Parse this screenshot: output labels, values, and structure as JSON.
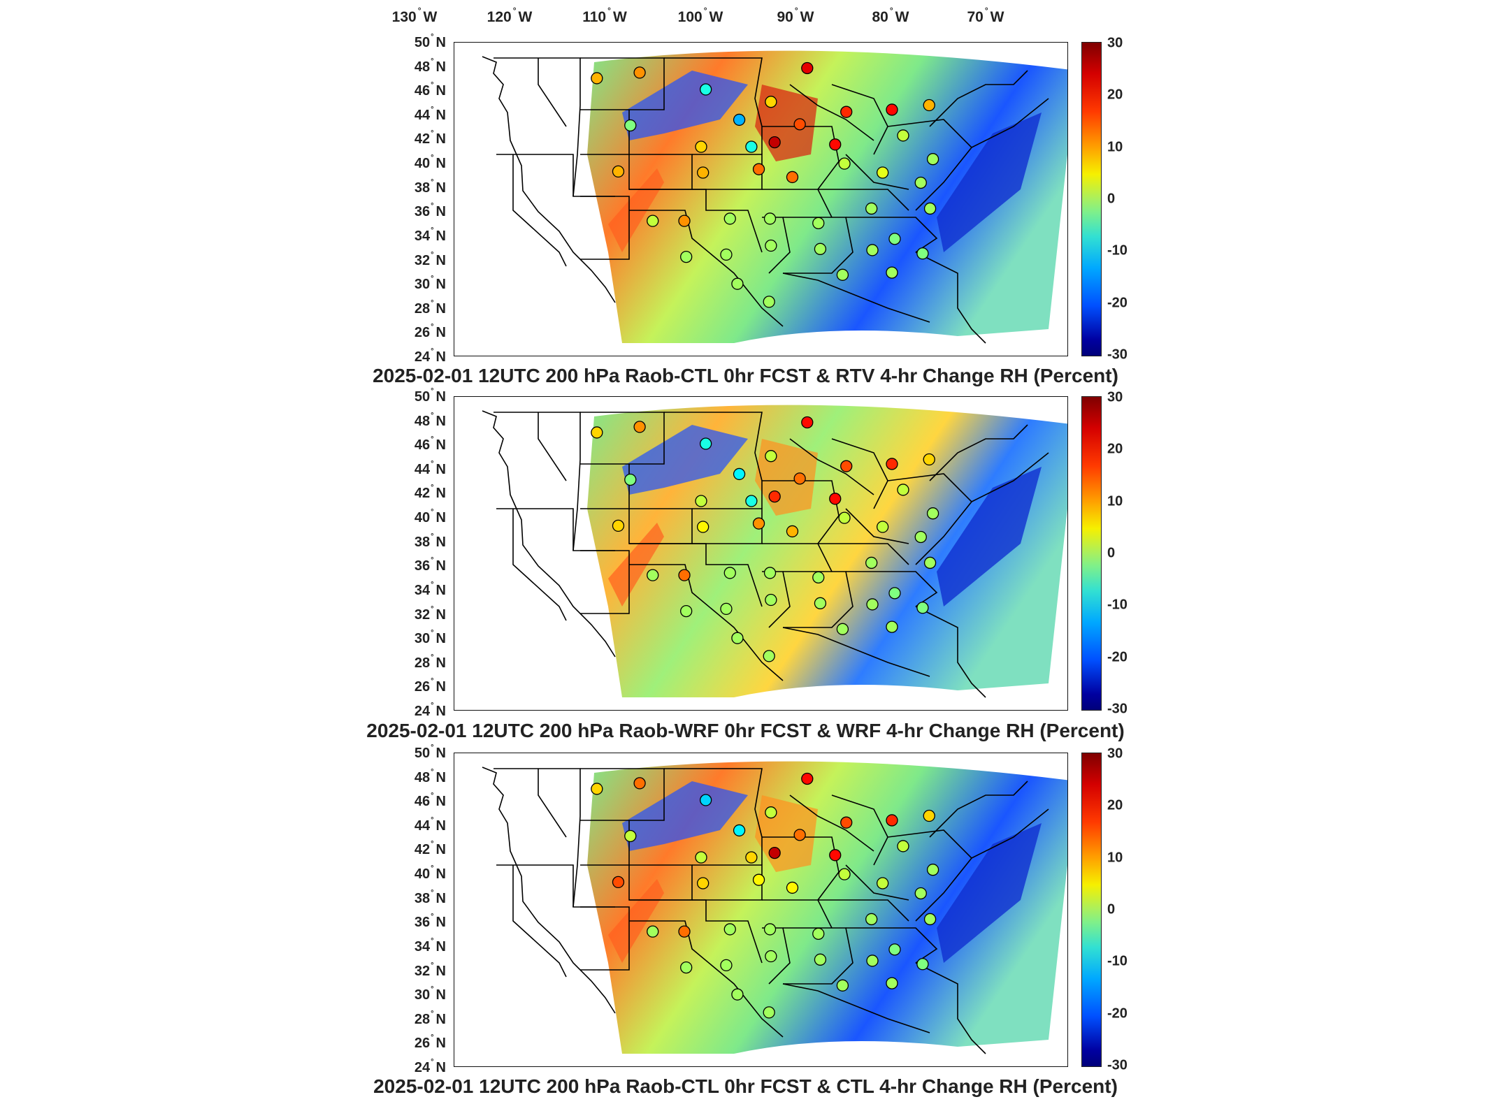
{
  "lon_ticks": [
    "130° W",
    "120° W",
    "110° W",
    "100° W",
    "90° W",
    "80° W",
    "70° W"
  ],
  "lon_labels": [
    {
      "deg": "130",
      "hemi": "W"
    },
    {
      "deg": "120",
      "hemi": "W"
    },
    {
      "deg": "110",
      "hemi": "W"
    },
    {
      "deg": "100",
      "hemi": "W"
    },
    {
      "deg": "90",
      "hemi": "W"
    },
    {
      "deg": "80",
      "hemi": "W"
    },
    {
      "deg": "70",
      "hemi": "W"
    }
  ],
  "lat_labels": [
    {
      "deg": "50",
      "hemi": "N"
    },
    {
      "deg": "48",
      "hemi": "N"
    },
    {
      "deg": "46",
      "hemi": "N"
    },
    {
      "deg": "44",
      "hemi": "N"
    },
    {
      "deg": "42",
      "hemi": "N"
    },
    {
      "deg": "40",
      "hemi": "N"
    },
    {
      "deg": "38",
      "hemi": "N"
    },
    {
      "deg": "36",
      "hemi": "N"
    },
    {
      "deg": "34",
      "hemi": "N"
    },
    {
      "deg": "32",
      "hemi": "N"
    },
    {
      "deg": "30",
      "hemi": "N"
    },
    {
      "deg": "28",
      "hemi": "N"
    },
    {
      "deg": "26",
      "hemi": "N"
    },
    {
      "deg": "24",
      "hemi": "N"
    }
  ],
  "colorbar": {
    "ticks": [
      "30",
      "20",
      "10",
      "0",
      "-10",
      "-20",
      "-30"
    ],
    "range": [
      -30,
      30
    ],
    "colormap": "jet",
    "colors": {
      "max": "#7f0000",
      "high": "#ff3a00",
      "mid_high": "#f6f000",
      "zero": "#7ff08a",
      "mid_low": "#00a8ff",
      "low": "#0000a0"
    }
  },
  "panels": [
    {
      "title": "2025-02-01 12UTC 200 hPa Raob-CTL 0hr FCST & RTV 4-hr Change RH (Percent)"
    },
    {
      "title": "2025-02-01 12UTC 200 hPa Raob-WRF 0hr FCST & WRF 4-hr Change RH (Percent)"
    },
    {
      "title": "2025-02-01 12UTC 200 hPa Raob-CTL 0hr FCST & CTL 4-hr Change RH (Percent)"
    }
  ],
  "stations": [
    {
      "lon": -116.0,
      "lat": 47.7,
      "v": [
        12,
        10,
        10
      ]
    },
    {
      "lon": -111.4,
      "lat": 48.2,
      "v": [
        14,
        14,
        16
      ]
    },
    {
      "lon": -104.3,
      "lat": 46.7,
      "v": [
        -6,
        -6,
        -10
      ]
    },
    {
      "lon": -100.7,
      "lat": 44.0,
      "v": [
        -12,
        -8,
        -8
      ]
    },
    {
      "lon": -97.3,
      "lat": 45.6,
      "v": [
        10,
        4,
        4
      ]
    },
    {
      "lon": -93.4,
      "lat": 48.6,
      "v": [
        24,
        22,
        22
      ]
    },
    {
      "lon": -89.2,
      "lat": 44.7,
      "v": [
        20,
        18,
        18
      ]
    },
    {
      "lon": -84.3,
      "lat": 44.9,
      "v": [
        22,
        20,
        20
      ]
    },
    {
      "lon": -80.3,
      "lat": 45.3,
      "v": [
        12,
        10,
        10
      ]
    },
    {
      "lon": -112.4,
      "lat": 43.5,
      "v": [
        0,
        0,
        4
      ]
    },
    {
      "lon": -104.8,
      "lat": 41.6,
      "v": [
        10,
        4,
        4
      ]
    },
    {
      "lon": -99.4,
      "lat": 41.6,
      "v": [
        -6,
        -6,
        10
      ]
    },
    {
      "lon": -96.9,
      "lat": 42.0,
      "v": [
        26,
        20,
        26
      ]
    },
    {
      "lon": -94.2,
      "lat": 43.6,
      "v": [
        18,
        16,
        16
      ]
    },
    {
      "lon": -90.4,
      "lat": 41.8,
      "v": [
        22,
        22,
        22
      ]
    },
    {
      "lon": -83.1,
      "lat": 42.6,
      "v": [
        4,
        4,
        4
      ]
    },
    {
      "lon": -79.9,
      "lat": 40.5,
      "v": [
        2,
        2,
        2
      ]
    },
    {
      "lon": -113.7,
      "lat": 39.4,
      "v": [
        12,
        10,
        18
      ]
    },
    {
      "lon": -104.6,
      "lat": 39.3,
      "v": [
        12,
        8,
        10
      ]
    },
    {
      "lon": -98.6,
      "lat": 39.6,
      "v": [
        16,
        14,
        8
      ]
    },
    {
      "lon": -95.0,
      "lat": 38.9,
      "v": [
        16,
        12,
        8
      ]
    },
    {
      "lon": -89.4,
      "lat": 40.1,
      "v": [
        4,
        4,
        4
      ]
    },
    {
      "lon": -85.3,
      "lat": 39.3,
      "v": [
        6,
        4,
        4
      ]
    },
    {
      "lon": -81.2,
      "lat": 38.4,
      "v": [
        2,
        2,
        2
      ]
    },
    {
      "lon": -110.0,
      "lat": 35.0,
      "v": [
        4,
        2,
        2
      ]
    },
    {
      "lon": -106.6,
      "lat": 35.0,
      "v": [
        14,
        16,
        16
      ]
    },
    {
      "lon": -101.7,
      "lat": 35.2,
      "v": [
        2,
        2,
        2
      ]
    },
    {
      "lon": -97.4,
      "lat": 35.2,
      "v": [
        2,
        2,
        2
      ]
    },
    {
      "lon": -92.2,
      "lat": 34.8,
      "v": [
        2,
        2,
        2
      ]
    },
    {
      "lon": -86.5,
      "lat": 36.1,
      "v": [
        2,
        2,
        2
      ]
    },
    {
      "lon": -80.2,
      "lat": 36.1,
      "v": [
        2,
        2,
        2
      ]
    },
    {
      "lon": -106.4,
      "lat": 31.8,
      "v": [
        2,
        2,
        2
      ]
    },
    {
      "lon": -102.1,
      "lat": 32.0,
      "v": [
        2,
        2,
        2
      ]
    },
    {
      "lon": -97.3,
      "lat": 32.8,
      "v": [
        2,
        2,
        2
      ]
    },
    {
      "lon": -92.0,
      "lat": 32.5,
      "v": [
        2,
        2,
        2
      ]
    },
    {
      "lon": -86.4,
      "lat": 32.4,
      "v": [
        2,
        2,
        2
      ]
    },
    {
      "lon": -84.0,
      "lat": 33.4,
      "v": [
        0,
        0,
        0
      ]
    },
    {
      "lon": -81.0,
      "lat": 32.1,
      "v": [
        0,
        0,
        0
      ]
    },
    {
      "lon": -100.9,
      "lat": 29.4,
      "v": [
        2,
        2,
        2
      ]
    },
    {
      "lon": -97.5,
      "lat": 27.8,
      "v": [
        2,
        2,
        2
      ]
    },
    {
      "lon": -89.6,
      "lat": 30.2,
      "v": [
        2,
        2,
        2
      ]
    },
    {
      "lon": -84.3,
      "lat": 30.4,
      "v": [
        2,
        2,
        2
      ]
    }
  ]
}
